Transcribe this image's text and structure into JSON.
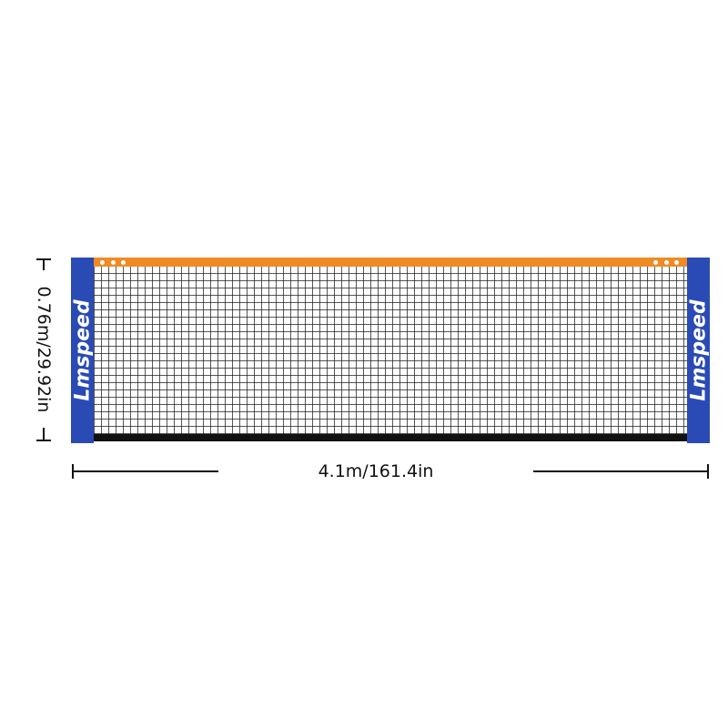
{
  "product": {
    "brand_logo": "Lmspeed",
    "colors": {
      "post": "#2a4bb5",
      "top_band": "#f08a24",
      "mesh": "#1e1e1e",
      "bottom_tape": "#111111"
    }
  },
  "dimensions": {
    "height_label": "0.76m/29.92in",
    "width_label": "4.1m/161.4in"
  }
}
